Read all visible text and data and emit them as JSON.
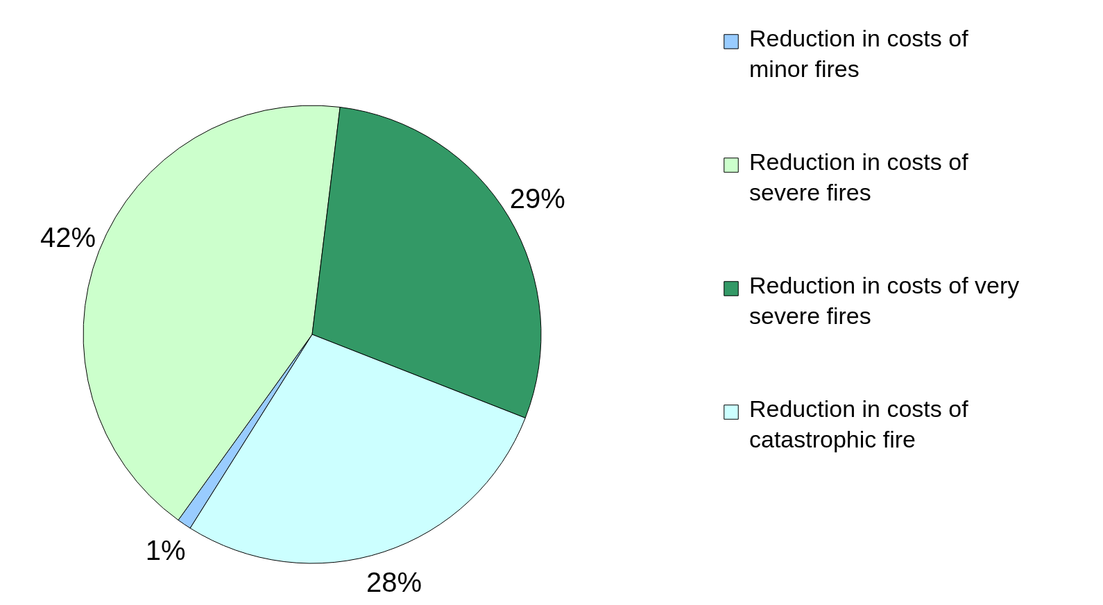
{
  "chart_data": {
    "type": "pie",
    "categories": [
      "Reduction in costs of minor fires",
      "Reduction in costs of severe fires",
      "Reduction in costs of very severe fires",
      "Reduction in costs of catastrophic fire"
    ],
    "values": [
      1,
      42,
      29,
      28
    ],
    "colors": [
      "#99ccff",
      "#ccffcc",
      "#339966",
      "#ccffff"
    ],
    "value_labels": [
      "1%",
      "42%",
      "29%",
      "28%"
    ],
    "legend": "right"
  }
}
